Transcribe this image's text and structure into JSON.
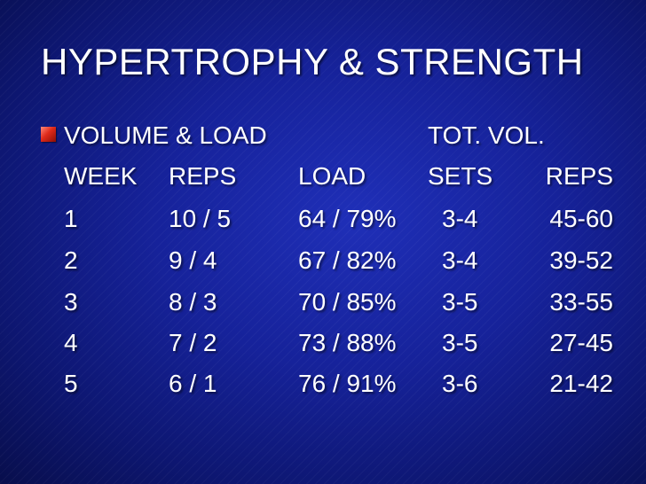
{
  "slide": {
    "title": "HYPERTROPHY & STRENGTH",
    "heading": {
      "left": "VOLUME & LOAD",
      "right": "TOT. VOL."
    },
    "columns": [
      "WEEK",
      "REPS",
      "LOAD",
      "SETS",
      "REPS"
    ],
    "rows": [
      {
        "week": "1",
        "reps": "10 / 5",
        "load": "64 / 79%",
        "sets": "3-4",
        "tot_reps": "45-60"
      },
      {
        "week": "2",
        "reps": "9 / 4",
        "load": "67 / 82%",
        "sets": "3-4",
        "tot_reps": "39-52"
      },
      {
        "week": "3",
        "reps": "8 / 3",
        "load": "70 / 85%",
        "sets": "3-5",
        "tot_reps": "33-55"
      },
      {
        "week": "4",
        "reps": "7 / 2",
        "load": "73 / 88%",
        "sets": "3-5",
        "tot_reps": "27-45"
      },
      {
        "week": "5",
        "reps": "6 / 1",
        "load": "76 / 91%",
        "sets": "3-6",
        "tot_reps": "21-42"
      }
    ]
  }
}
